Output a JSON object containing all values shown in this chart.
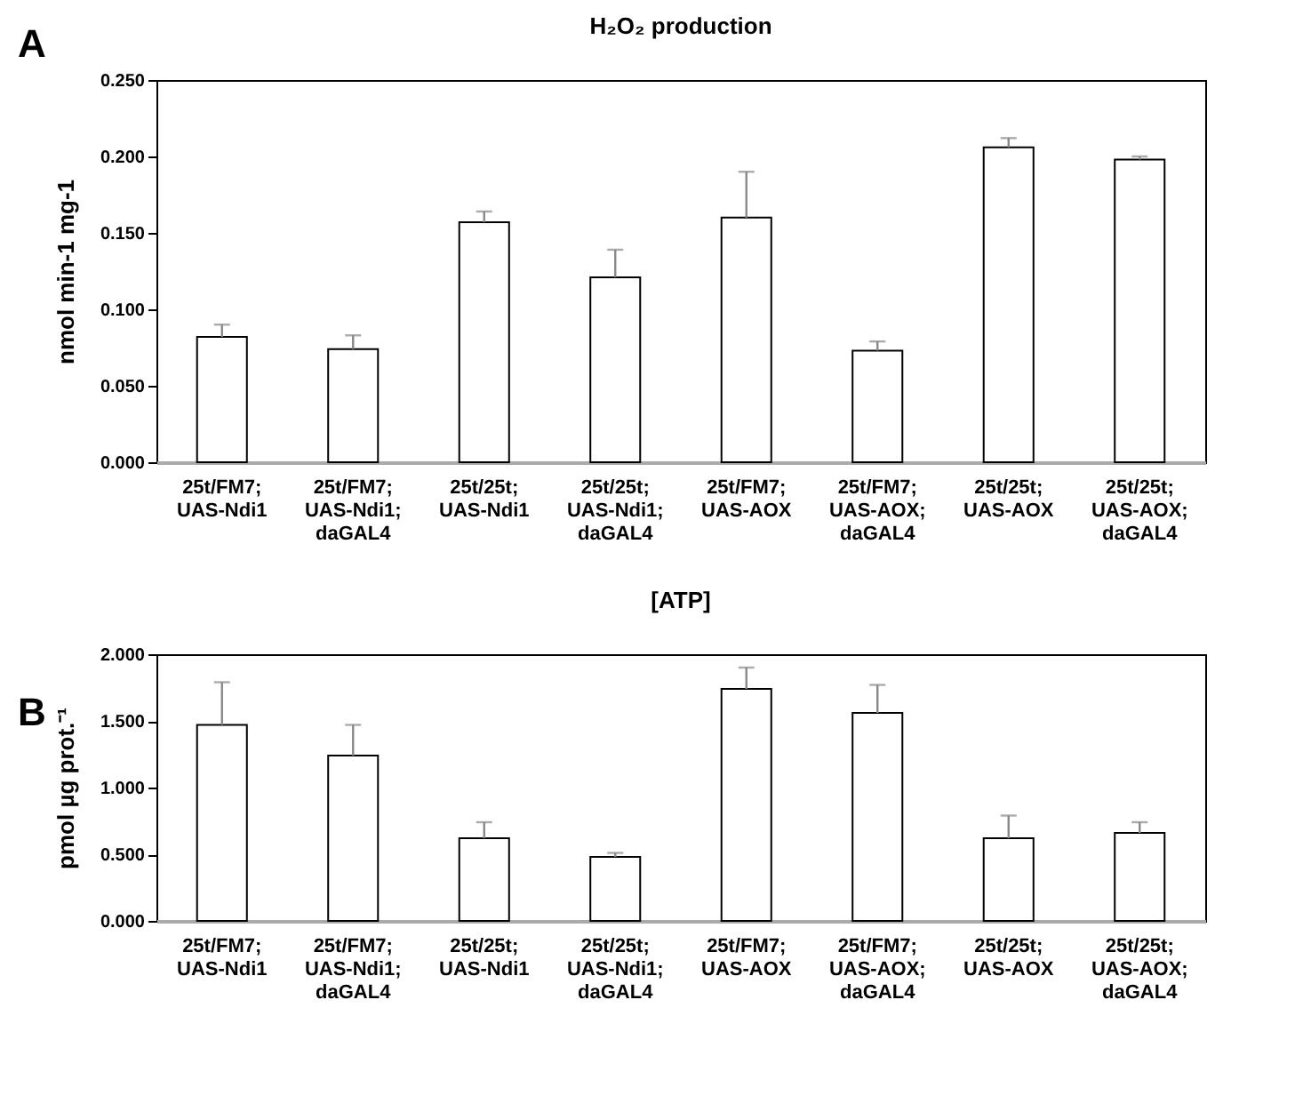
{
  "chart_data": [
    {
      "type": "bar",
      "title": "H₂O₂ production",
      "ylabel": "nmol min-1 mg-1",
      "annotations": [
        "A"
      ],
      "categories": [
        "25t/FM7; UAS-Ndi1",
        "25t/FM7; UAS-Ndi1; daGAL4",
        "25t/25t; UAS-Ndi1",
        "25t/25t; UAS-Ndi1; daGAL4",
        "25t/FM7; UAS-AOX",
        "25t/FM7; UAS-AOX; daGAL4",
        "25t/25t; UAS-AOX",
        "25t/25t; UAS-AOX; daGAL4"
      ],
      "values": [
        0.082,
        0.074,
        0.157,
        0.121,
        0.16,
        0.073,
        0.206,
        0.198
      ],
      "errors": [
        [
          0.082,
          0.09
        ],
        [
          0.074,
          0.083
        ],
        [
          0.157,
          0.164
        ],
        [
          0.121,
          0.139
        ],
        [
          0.16,
          0.19
        ],
        [
          0.073,
          0.079
        ],
        [
          0.206,
          0.212
        ],
        [
          0.198,
          0.2
        ]
      ],
      "color": "#ffffff",
      "ylim": [
        0,
        0.25
      ],
      "yticks": [
        {
          "value": 0,
          "label": "0.000"
        },
        {
          "value": 0.05,
          "label": "0.050"
        },
        {
          "value": 0.1,
          "label": "0.100"
        },
        {
          "value": 0.15,
          "label": "0.150"
        },
        {
          "value": 0.2,
          "label": "0.200"
        },
        {
          "value": 0.25,
          "label": "0.250"
        }
      ],
      "grid": false
    },
    {
      "type": "bar",
      "title": "[ATP]",
      "ylabel": "pmol µg prot.⁻¹",
      "annotations": [
        "B"
      ],
      "categories": [
        "25t/FM7; UAS-Ndi1",
        "25t/FM7; UAS-Ndi1; daGAL4",
        "25t/25t; UAS-Ndi1",
        "25t/25t; UAS-Ndi1; daGAL4",
        "25t/FM7; UAS-AOX",
        "25t/FM7; UAS-AOX; daGAL4",
        "25t/25t; UAS-AOX",
        "25t/25t; UAS-AOX; daGAL4"
      ],
      "values": [
        1.47,
        1.24,
        0.62,
        0.48,
        1.74,
        1.56,
        0.62,
        0.66
      ],
      "errors": [
        [
          1.47,
          1.79
        ],
        [
          1.24,
          1.47
        ],
        [
          0.62,
          0.74
        ],
        [
          0.48,
          0.51
        ],
        [
          1.74,
          1.9
        ],
        [
          1.56,
          1.77
        ],
        [
          0.62,
          0.79
        ],
        [
          0.66,
          0.74
        ]
      ],
      "color": "#ffffff",
      "ylim": [
        0,
        2
      ],
      "yticks": [
        {
          "value": 0,
          "label": "0.000"
        },
        {
          "value": 0.5,
          "label": "0.500"
        },
        {
          "value": 1,
          "label": "1.000"
        },
        {
          "value": 1.5,
          "label": "1.500"
        },
        {
          "value": 2,
          "label": "2.000"
        }
      ],
      "grid": false
    }
  ]
}
